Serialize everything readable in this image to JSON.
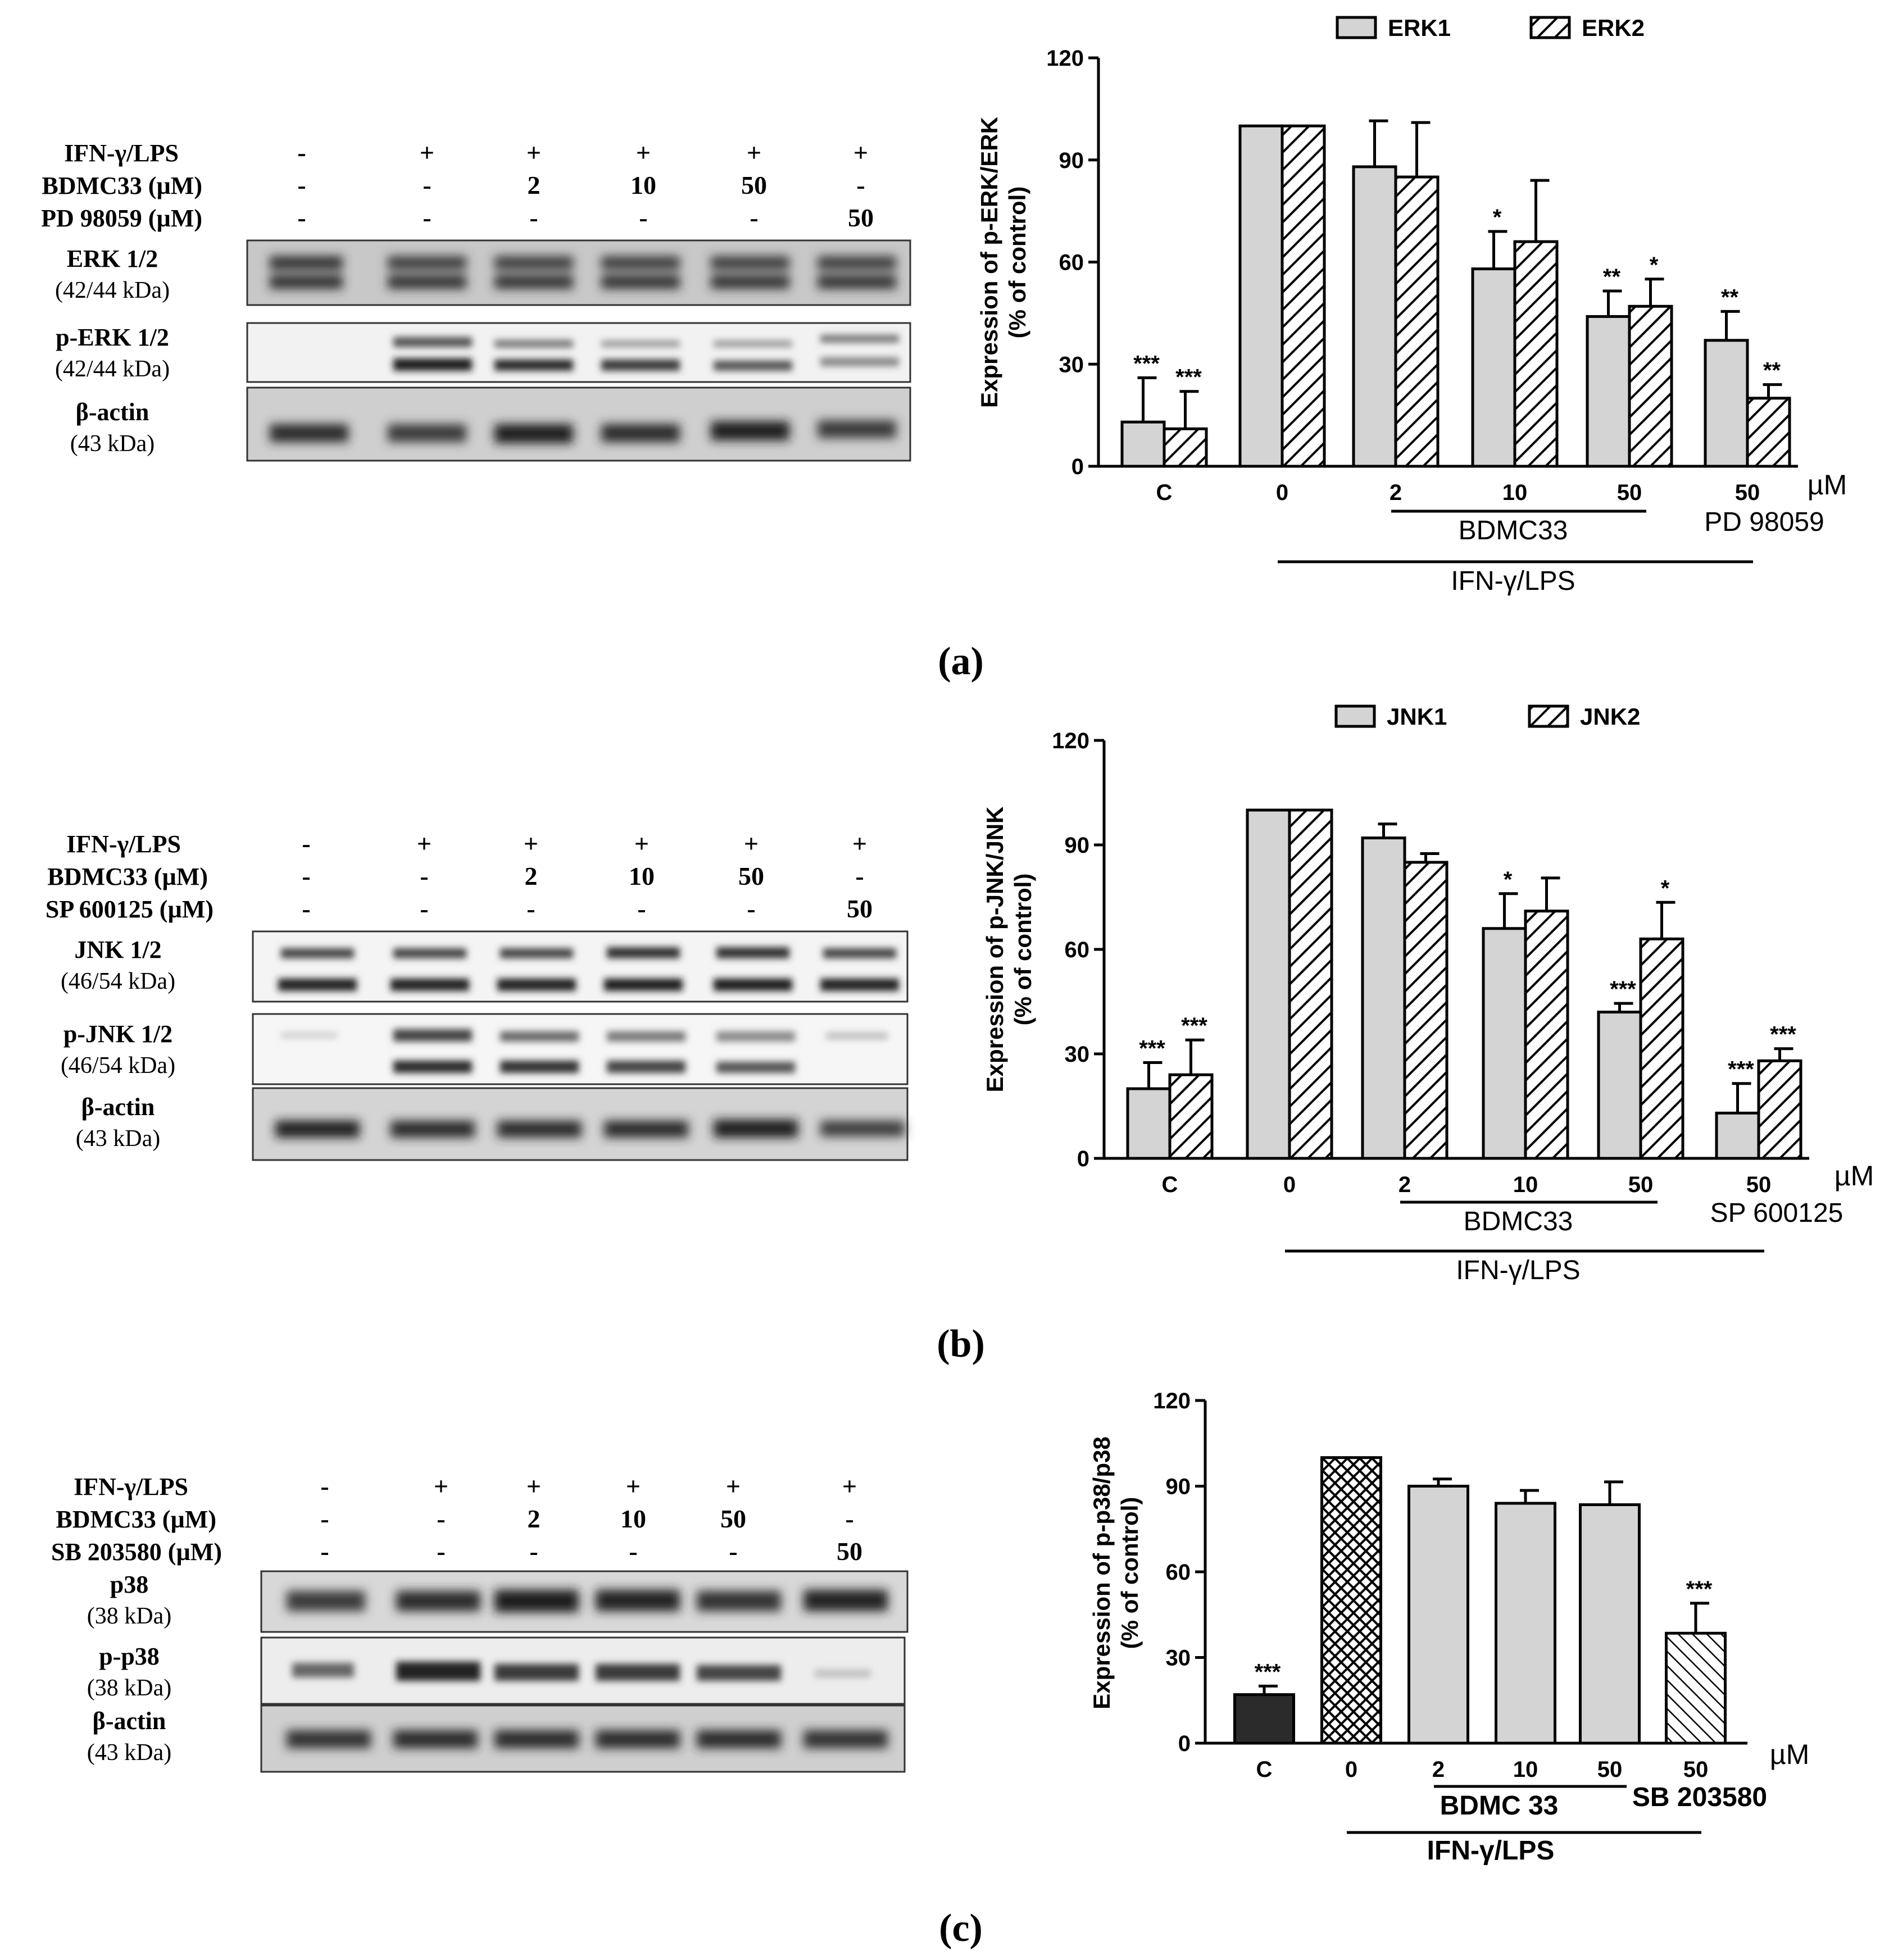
{
  "panels": [
    {
      "label": "(a)",
      "blot": {
        "rows": [
          {
            "name": "IFN-γ/LPS",
            "values": [
              "-",
              "+",
              "+",
              "+",
              "+",
              "+"
            ]
          },
          {
            "name": "BDMC33 (µM)",
            "values": [
              "-",
              "-",
              "2",
              "10",
              "50",
              "-"
            ]
          },
          {
            "name": "PD 98059 (µM)",
            "values": [
              "-",
              "-",
              "-",
              "-",
              "-",
              "50"
            ]
          }
        ],
        "strips": [
          {
            "name": "ERK 1/2",
            "kda": "(42/44 kDa)"
          },
          {
            "name": "p-ERK 1/2",
            "kda": "(42/44 kDa)"
          },
          {
            "name": "β-actin",
            "kda": "(43 kDa)"
          }
        ]
      }
    },
    {
      "label": "(b)",
      "blot": {
        "rows": [
          {
            "name": "IFN-γ/LPS",
            "values": [
              "-",
              "+",
              "+",
              "+",
              "+",
              "+"
            ]
          },
          {
            "name": "BDMC33 (µM)",
            "values": [
              "-",
              "-",
              "2",
              "10",
              "50",
              "-"
            ]
          },
          {
            "name": "SP 600125 (µM)",
            "values": [
              "-",
              "-",
              "-",
              "-",
              "-",
              "50"
            ]
          }
        ],
        "strips": [
          {
            "name": "JNK 1/2",
            "kda": "(46/54 kDa)"
          },
          {
            "name": "p-JNK 1/2",
            "kda": "(46/54 kDa)"
          },
          {
            "name": "β-actin",
            "kda": "(43 kDa)"
          }
        ]
      }
    },
    {
      "label": "(c)",
      "blot": {
        "rows": [
          {
            "name": "IFN-γ/LPS",
            "values": [
              "-",
              "+",
              "+",
              "+",
              "+",
              "+"
            ]
          },
          {
            "name": "BDMC33 (µM)",
            "values": [
              "-",
              "-",
              "2",
              "10",
              "50",
              "-"
            ]
          },
          {
            "name": "SB 203580 (µM)",
            "values": [
              "-",
              "-",
              "-",
              "-",
              "-",
              "50"
            ]
          }
        ],
        "strips": [
          {
            "name": "p38",
            "kda": "(38 kDa)"
          },
          {
            "name": "p-p38",
            "kda": "(38 kDa)"
          },
          {
            "name": "β-actin",
            "kda": "(43 kDa)"
          }
        ]
      }
    }
  ],
  "chart_data": [
    {
      "type": "bar",
      "ylabel": "Expression of p-ERK/ERK\n(% of control)",
      "ylim": [
        0,
        120
      ],
      "yticks": [
        0,
        30,
        60,
        90,
        120
      ],
      "categories": [
        "C",
        "0",
        "2",
        "10",
        "50",
        "50"
      ],
      "unit": "µM",
      "legend_placement": "top",
      "series": [
        {
          "name": "ERK1",
          "values": [
            13,
            100,
            88,
            58,
            44,
            37
          ],
          "errors": [
            13,
            0,
            13.5,
            11,
            7.5,
            8.5
          ],
          "stars": [
            "***",
            "",
            "",
            "*",
            "**",
            "**"
          ],
          "color": "#d4d4d4",
          "pattern": "solid"
        },
        {
          "name": "ERK2",
          "values": [
            11,
            100,
            85,
            66,
            47,
            20
          ],
          "errors": [
            11,
            0,
            16,
            18,
            8,
            4
          ],
          "stars": [
            "***",
            "",
            "",
            "",
            "*",
            "**"
          ],
          "color": "#ffffff",
          "pattern": "hatch"
        }
      ],
      "groups": [
        {
          "label": "BDMC33",
          "from": 2,
          "to": 4
        },
        {
          "label": "PD 98059",
          "from": 5,
          "to": 5
        },
        {
          "label": "IFN-γ/LPS",
          "from": 1,
          "to": 5
        }
      ]
    },
    {
      "type": "bar",
      "ylabel": "Expression of p-JNK/JNK\n(% of control)",
      "ylim": [
        0,
        120
      ],
      "yticks": [
        0,
        30,
        60,
        90,
        120
      ],
      "categories": [
        "C",
        "0",
        "2",
        "10",
        "50",
        "50"
      ],
      "unit": "µM",
      "legend_placement": "top",
      "series": [
        {
          "name": "JNK1",
          "values": [
            20,
            100,
            92,
            66,
            42,
            13
          ],
          "errors": [
            7.5,
            0,
            4,
            10,
            2.5,
            8.5
          ],
          "stars": [
            "***",
            "",
            "",
            "*",
            "***",
            "***"
          ],
          "color": "#d4d4d4",
          "pattern": "solid"
        },
        {
          "name": "JNK2",
          "values": [
            24,
            100,
            85,
            71,
            63,
            28
          ],
          "errors": [
            10,
            0,
            2.5,
            9.5,
            10.5,
            3.5
          ],
          "stars": [
            "***",
            "",
            "",
            "",
            "*",
            "***"
          ],
          "color": "#ffffff",
          "pattern": "hatch"
        }
      ],
      "groups": [
        {
          "label": "BDMC33",
          "from": 2,
          "to": 4
        },
        {
          "label": "SP 600125",
          "from": 5,
          "to": 5
        },
        {
          "label": "IFN-γ/LPS",
          "from": 1,
          "to": 5
        }
      ]
    },
    {
      "type": "bar",
      "ylabel": "Expression of p-p38/p38\n(% of control)",
      "ylim": [
        0,
        120
      ],
      "yticks": [
        0,
        30,
        60,
        90,
        120
      ],
      "categories": [
        "C",
        "0",
        "2",
        "10",
        "50",
        "50"
      ],
      "unit": "µM",
      "series": [
        {
          "name": "",
          "values": [
            17,
            100,
            90,
            84,
            83.5,
            38.5
          ],
          "errors": [
            3,
            0,
            2.5,
            4.5,
            8,
            10.5
          ],
          "stars": [
            "***",
            "",
            "",
            "",
            "",
            "***"
          ],
          "fills": [
            "dark",
            "crosshatch",
            "gray",
            "gray",
            "gray",
            "diag"
          ]
        }
      ],
      "groups": [
        {
          "label": "BDMC 33",
          "from": 2,
          "to": 4
        },
        {
          "label": "SB 203580",
          "from": 5,
          "to": 5
        },
        {
          "label": "IFN-γ/LPS",
          "from": 1,
          "to": 5
        }
      ]
    }
  ]
}
